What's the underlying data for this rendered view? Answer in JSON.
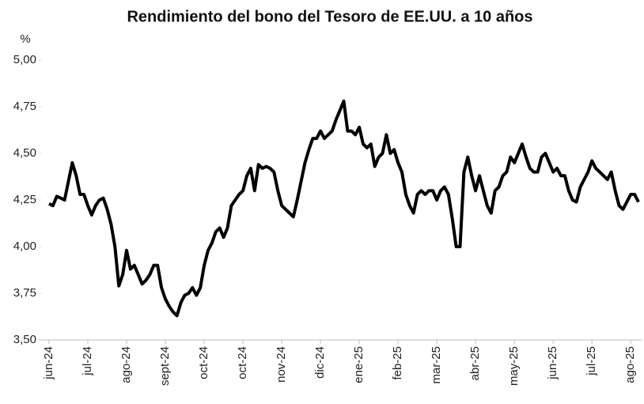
{
  "chart_data": {
    "type": "line",
    "title": "Rendimiento del bono del Tesoro de EE.UU. a 10 años",
    "y_label": "%",
    "categories": [
      "jun-24",
      null,
      null,
      null,
      null,
      null,
      null,
      null,
      null,
      null,
      "jul-24",
      null,
      null,
      null,
      null,
      null,
      null,
      null,
      null,
      null,
      "ago-24",
      null,
      null,
      null,
      null,
      null,
      null,
      null,
      null,
      null,
      "sept-24",
      null,
      null,
      null,
      null,
      null,
      null,
      null,
      null,
      null,
      "oct-24",
      null,
      null,
      null,
      null,
      null,
      null,
      null,
      null,
      null,
      "oct-24",
      null,
      null,
      null,
      null,
      null,
      null,
      null,
      null,
      null,
      "nov-24",
      null,
      null,
      null,
      null,
      null,
      null,
      null,
      null,
      null,
      "dic-24",
      null,
      null,
      null,
      null,
      null,
      null,
      null,
      null,
      null,
      "ene-25",
      null,
      null,
      null,
      null,
      null,
      null,
      null,
      null,
      null,
      "feb-25",
      null,
      null,
      null,
      null,
      null,
      null,
      null,
      null,
      null,
      "mar-25",
      null,
      null,
      null,
      null,
      null,
      null,
      null,
      null,
      null,
      "abr-25",
      null,
      null,
      null,
      null,
      null,
      null,
      null,
      null,
      null,
      "may-25",
      null,
      null,
      null,
      null,
      null,
      null,
      null,
      null,
      null,
      "jun-25",
      null,
      null,
      null,
      null,
      null,
      null,
      null,
      null,
      null,
      "jul-25",
      null,
      null,
      null,
      null,
      null,
      null,
      null,
      null,
      null,
      "ago-25",
      null,
      null
    ],
    "series": [
      {
        "name": "Rendimiento",
        "color": "#000000",
        "values": [
          4.23,
          4.22,
          4.27,
          4.26,
          4.25,
          4.35,
          4.45,
          4.38,
          4.28,
          4.28,
          4.22,
          4.17,
          4.22,
          4.25,
          4.26,
          4.2,
          4.12,
          4.0,
          3.79,
          3.85,
          3.98,
          3.88,
          3.9,
          3.85,
          3.8,
          3.82,
          3.85,
          3.9,
          3.9,
          3.78,
          3.72,
          3.68,
          3.65,
          3.63,
          3.7,
          3.74,
          3.75,
          3.78,
          3.74,
          3.78,
          3.9,
          3.98,
          4.02,
          4.08,
          4.1,
          4.05,
          4.1,
          4.22,
          4.25,
          4.28,
          4.3,
          4.38,
          4.42,
          4.3,
          4.44,
          4.42,
          4.43,
          4.42,
          4.4,
          4.3,
          4.22,
          4.2,
          4.18,
          4.16,
          4.25,
          4.35,
          4.45,
          4.52,
          4.58,
          4.58,
          4.62,
          4.58,
          4.6,
          4.62,
          4.68,
          4.73,
          4.78,
          4.62,
          4.62,
          4.6,
          4.64,
          4.55,
          4.53,
          4.55,
          4.43,
          4.48,
          4.5,
          4.6,
          4.5,
          4.52,
          4.45,
          4.4,
          4.28,
          4.22,
          4.18,
          4.28,
          4.3,
          4.28,
          4.3,
          4.3,
          4.25,
          4.3,
          4.32,
          4.28,
          4.15,
          4.0,
          4.0,
          4.4,
          4.48,
          4.38,
          4.3,
          4.38,
          4.3,
          4.22,
          4.18,
          4.3,
          4.32,
          4.38,
          4.4,
          4.48,
          4.45,
          4.5,
          4.55,
          4.48,
          4.42,
          4.4,
          4.4,
          4.48,
          4.5,
          4.45,
          4.4,
          4.42,
          4.38,
          4.38,
          4.3,
          4.25,
          4.24,
          4.32,
          4.36,
          4.4,
          4.46,
          4.42,
          4.4,
          4.38,
          4.36,
          4.4,
          4.3,
          4.22,
          4.2,
          4.24,
          4.28,
          4.28,
          4.24
        ]
      }
    ],
    "ylim": [
      3.5,
      5
    ],
    "yticks": [
      {
        "value": 3.5,
        "label": "3,50"
      },
      {
        "value": 3.75,
        "label": "3,75"
      },
      {
        "value": 4,
        "label": "4,00"
      },
      {
        "value": 4.25,
        "label": "4,25"
      },
      {
        "value": 4.5,
        "label": "4,50"
      },
      {
        "value": 4.75,
        "label": "4,75"
      },
      {
        "value": 5,
        "label": "5,00"
      }
    ],
    "grid": false
  }
}
